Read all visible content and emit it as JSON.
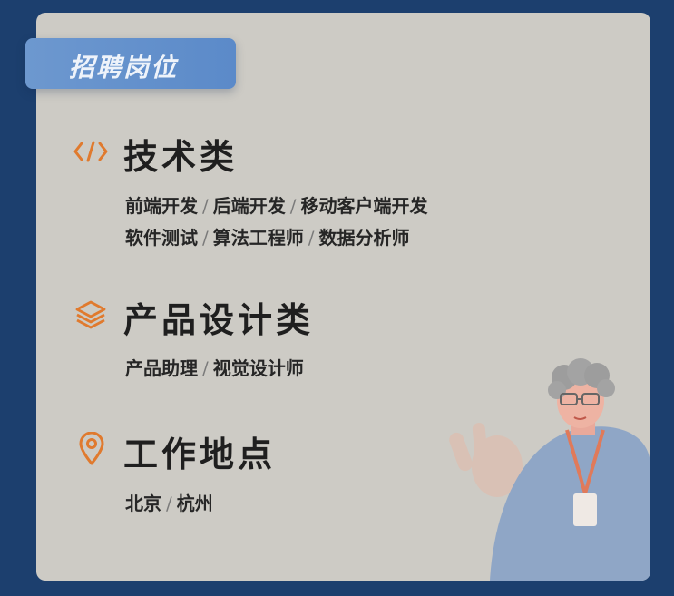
{
  "header": {
    "tag_label": "招聘岗位"
  },
  "sections": [
    {
      "title": "技术类",
      "icon": "code-icon",
      "lines": [
        [
          "前端开发",
          "后端开发",
          "移动客户端开发"
        ],
        [
          "软件测试",
          "算法工程师",
          "数据分析师"
        ]
      ]
    },
    {
      "title": "产品设计类",
      "icon": "layers-icon",
      "lines": [
        [
          "产品助理",
          "视觉设计师"
        ]
      ]
    },
    {
      "title": "工作地点",
      "icon": "location-pin-icon",
      "lines": [
        [
          "北京",
          "杭州"
        ]
      ]
    }
  ],
  "separator": "/",
  "colors": {
    "page_background": "#1c3f6e",
    "card_background": "#cdcbc5",
    "tag_background": "#5b8ac9",
    "icon_accent": "#e07a2e",
    "title_text": "#1f1f1f"
  },
  "illustration": {
    "icon": "person-with-glasses-illustration"
  }
}
